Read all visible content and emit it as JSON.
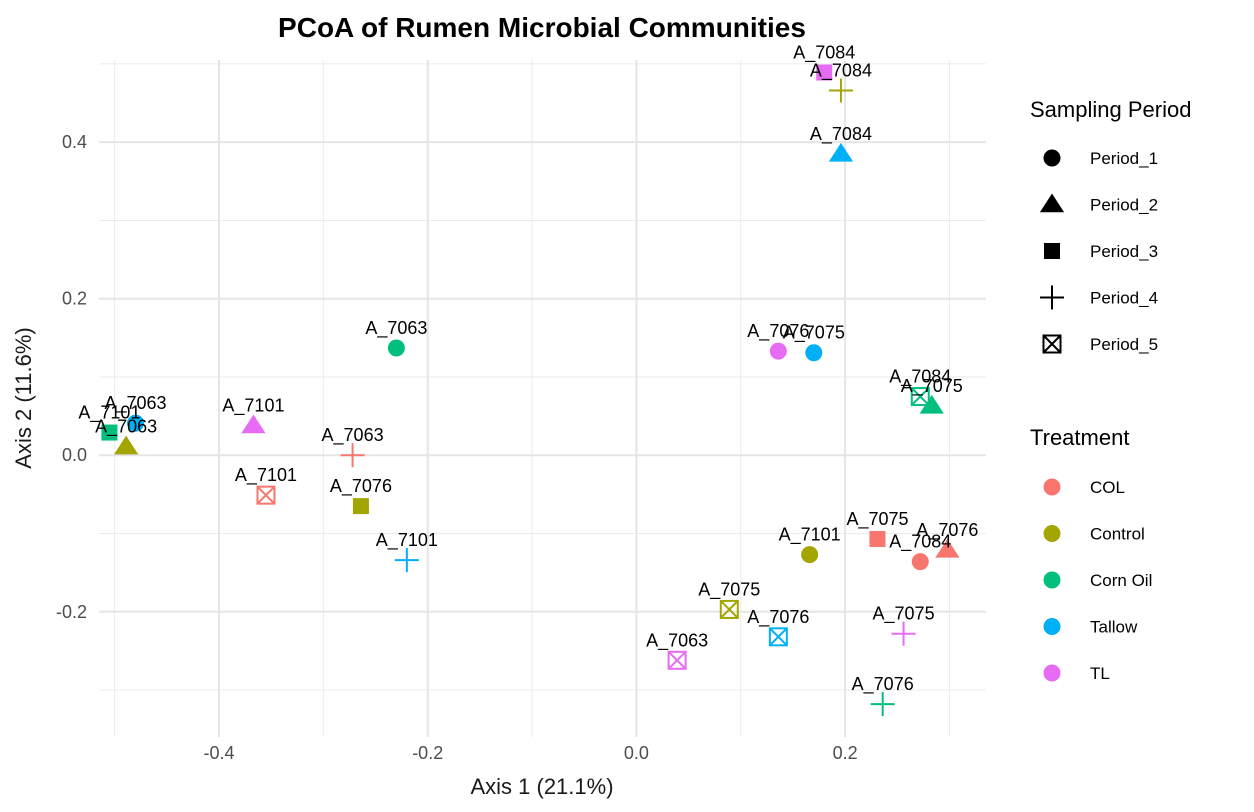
{
  "chart_data": {
    "type": "scatter",
    "title": "PCoA of Rumen Microbial Communities",
    "xlabel": "Axis 1 (21.1%)",
    "ylabel": "Axis 2 (11.6%)",
    "xlim": [
      -0.515,
      0.335
    ],
    "ylim": [
      -0.36,
      0.505
    ],
    "xticks": [
      -0.4,
      -0.2,
      0.0,
      0.2
    ],
    "xtick_labels": [
      "-0.4",
      "-0.2",
      "0.0",
      "0.2"
    ],
    "yticks": [
      -0.2,
      0.0,
      0.2,
      0.4
    ],
    "ytick_labels": [
      "-0.2",
      "0.0",
      "0.2",
      "0.4"
    ],
    "grid": true,
    "legend_position": "right",
    "treatment_legend": {
      "title": "Treatment",
      "items": [
        {
          "label": "COL",
          "color": "#F8766D"
        },
        {
          "label": "Control",
          "color": "#A3A500"
        },
        {
          "label": "Corn Oil",
          "color": "#00BF7D"
        },
        {
          "label": "Tallow",
          "color": "#00B0F6"
        },
        {
          "label": "TL",
          "color": "#E76BF3"
        }
      ]
    },
    "period_legend": {
      "title": "Sampling Period",
      "items": [
        {
          "label": "Period_1",
          "shape": "circle"
        },
        {
          "label": "Period_2",
          "shape": "triangle"
        },
        {
          "label": "Period_3",
          "shape": "square"
        },
        {
          "label": "Period_4",
          "shape": "plus"
        },
        {
          "label": "Period_5",
          "shape": "boxx"
        }
      ]
    },
    "points": [
      {
        "label": "A_7063",
        "treatment": "Corn Oil",
        "period": "Period_1",
        "x": -0.23,
        "y": 0.137
      },
      {
        "label": "A_7076",
        "treatment": "TL",
        "period": "Period_1",
        "x": 0.136,
        "y": 0.133
      },
      {
        "label": "A_7075",
        "treatment": "Tallow",
        "period": "Period_1",
        "x": 0.17,
        "y": 0.131
      },
      {
        "label": "A_7101",
        "treatment": "Control",
        "period": "Period_1",
        "x": 0.166,
        "y": -0.127
      },
      {
        "label": "A_7084",
        "treatment": "COL",
        "period": "Period_1",
        "x": 0.272,
        "y": -0.136
      },
      {
        "label": "A_7063",
        "treatment": "Tallow",
        "period": "Period_1",
        "x": -0.48,
        "y": 0.041
      },
      {
        "label": "A_7084",
        "treatment": "Tallow",
        "period": "Period_2",
        "x": 0.196,
        "y": 0.385
      },
      {
        "label": "A_7101",
        "treatment": "TL",
        "period": "Period_2",
        "x": -0.367,
        "y": 0.038
      },
      {
        "label": "A_7063",
        "treatment": "Control",
        "period": "Period_2",
        "x": -0.489,
        "y": 0.011
      },
      {
        "label": "A_7075",
        "treatment": "Corn Oil",
        "period": "Period_2",
        "x": 0.283,
        "y": 0.063
      },
      {
        "label": "A_7076",
        "treatment": "COL",
        "period": "Period_2",
        "x": 0.298,
        "y": -0.121
      },
      {
        "label": "A_7084",
        "treatment": "TL",
        "period": "Period_3",
        "x": 0.18,
        "y": 0.489
      },
      {
        "label": "A_7101",
        "treatment": "Corn Oil",
        "period": "Period_3",
        "x": -0.505,
        "y": 0.029
      },
      {
        "label": "A_7076",
        "treatment": "Control",
        "period": "Period_3",
        "x": -0.264,
        "y": -0.065
      },
      {
        "label": "A_7075",
        "treatment": "COL",
        "period": "Period_3",
        "x": 0.231,
        "y": -0.107
      },
      {
        "label": "A_7084",
        "treatment": "Control",
        "period": "Period_4",
        "x": 0.196,
        "y": 0.466
      },
      {
        "label": "A_7063",
        "treatment": "COL",
        "period": "Period_4",
        "x": -0.272,
        "y": 0.0
      },
      {
        "label": "A_7101",
        "treatment": "Tallow",
        "period": "Period_4",
        "x": -0.22,
        "y": -0.134
      },
      {
        "label": "A_7075",
        "treatment": "TL",
        "period": "Period_4",
        "x": 0.256,
        "y": -0.228
      },
      {
        "label": "A_7076",
        "treatment": "Corn Oil",
        "period": "Period_4",
        "x": 0.236,
        "y": -0.318
      },
      {
        "label": "A_7084",
        "treatment": "Corn Oil",
        "period": "Period_5",
        "x": 0.272,
        "y": 0.075
      },
      {
        "label": "A_7101",
        "treatment": "COL",
        "period": "Period_5",
        "x": -0.355,
        "y": -0.051
      },
      {
        "label": "A_7075",
        "treatment": "Control",
        "period": "Period_5",
        "x": 0.089,
        "y": -0.197
      },
      {
        "label": "A_7076",
        "treatment": "Tallow",
        "period": "Period_5",
        "x": 0.136,
        "y": -0.232
      },
      {
        "label": "A_7063",
        "treatment": "TL",
        "period": "Period_5",
        "x": 0.039,
        "y": -0.262
      }
    ]
  }
}
